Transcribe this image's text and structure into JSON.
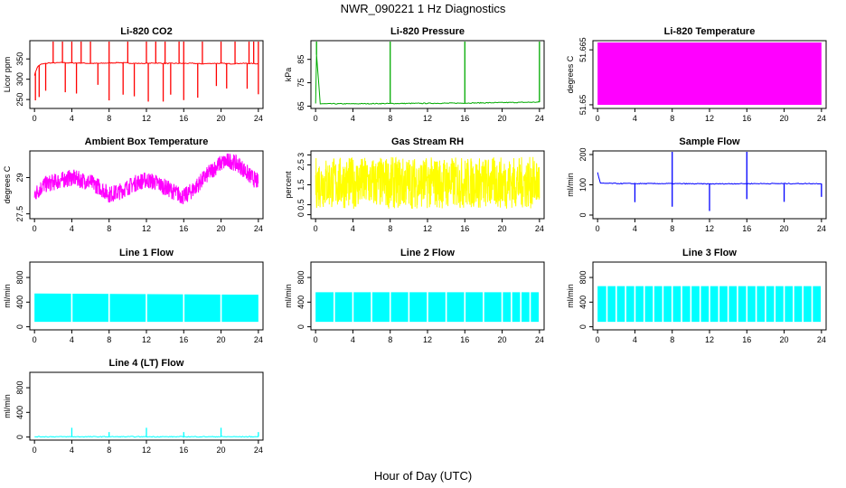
{
  "title": "NWR_090221  1 Hz Diagnostics",
  "xlabel": "Hour of Day (UTC)",
  "chart_data": [
    {
      "type": "line",
      "title": "Li-820 CO2",
      "ylabel": "Licor ppm",
      "xlim": [
        -0.5,
        24.5
      ],
      "ylim": [
        228,
        395
      ],
      "xticks": [
        0,
        4,
        8,
        12,
        16,
        20,
        24
      ],
      "yticks": [
        250,
        300,
        350
      ],
      "color": "#ff0000",
      "series": [
        {
          "x": [
            0,
            0.3,
            0.6,
            1,
            1.5,
            2,
            3,
            4,
            5,
            6,
            7,
            8,
            9,
            10,
            11,
            12,
            13,
            14,
            15,
            16,
            17,
            18,
            19,
            20,
            21,
            22,
            23,
            24
          ],
          "y": [
            310,
            330,
            336,
            338,
            340,
            340,
            341,
            340,
            340,
            339,
            339,
            340,
            341,
            340,
            339,
            339,
            340,
            339,
            339,
            339,
            339,
            338,
            339,
            339,
            338,
            339,
            339,
            338
          ],
          "spikes_up": [
            2,
            3,
            4,
            5,
            6,
            8,
            10,
            12,
            13,
            14,
            15.5,
            16,
            18,
            20,
            21.5,
            23,
            23.5,
            24
          ],
          "spikes_down": [
            0.1,
            0.5,
            1.2,
            3.3,
            4.5,
            6.8,
            8,
            9.5,
            10.7,
            12.2,
            13.8,
            14.6,
            16,
            17.5,
            19.5,
            20.6,
            22.8,
            24
          ]
        }
      ]
    },
    {
      "type": "line",
      "title": "Li-820 Pressure",
      "ylabel": "kPa",
      "xlim": [
        -0.5,
        24.5
      ],
      "ylim": [
        64,
        93
      ],
      "xticks": [
        0,
        4,
        8,
        12,
        16,
        20,
        24
      ],
      "yticks": [
        65,
        75,
        85
      ],
      "color": "#00aa00",
      "series": [
        {
          "x": [
            0,
            0.1,
            0.5,
            4,
            8,
            12,
            16,
            20,
            24
          ],
          "y": [
            66,
            87,
            66,
            66,
            66.1,
            66.2,
            66.3,
            66.5,
            66.7
          ],
          "spikes_up": [
            0.1,
            8,
            16,
            24
          ]
        }
      ]
    },
    {
      "type": "area",
      "title": "Li-820 Temperature",
      "ylabel": "degrees C",
      "xlim": [
        -0.5,
        24.5
      ],
      "ylim": [
        51.649,
        51.6675
      ],
      "xticks": [
        0,
        4,
        8,
        12,
        16,
        20,
        24
      ],
      "yticks": [
        51.65,
        51.665
      ],
      "color": "#ff00ff",
      "series": [
        {
          "x": [
            0,
            24
          ],
          "low": [
            51.65,
            51.65
          ],
          "high": [
            51.667,
            51.667
          ]
        }
      ]
    },
    {
      "type": "line",
      "title": "Ambient Box Temperature",
      "ylabel": "degrees C",
      "xlim": [
        -0.5,
        24.5
      ],
      "ylim": [
        27.3,
        30.1
      ],
      "xticks": [
        0,
        4,
        8,
        12,
        16,
        20,
        24
      ],
      "yticks": [
        27.5,
        29.0
      ],
      "color": "#ff00ff",
      "series": [
        {
          "x": [
            0,
            1,
            2,
            3,
            4,
            5,
            6,
            7,
            8,
            9,
            10,
            11,
            12,
            13,
            14,
            15,
            16,
            17,
            18,
            19,
            20,
            21,
            22,
            23,
            24
          ],
          "y": [
            28.3,
            28.7,
            28.8,
            28.9,
            29.0,
            28.9,
            28.8,
            28.6,
            28.3,
            28.4,
            28.6,
            28.8,
            28.9,
            28.8,
            28.6,
            28.4,
            28.2,
            28.5,
            28.9,
            29.3,
            29.6,
            29.7,
            29.5,
            29.1,
            28.8
          ],
          "noise": 0.35
        }
      ]
    },
    {
      "type": "line",
      "title": "Gas Stream RH",
      "ylabel": "percent",
      "xlim": [
        -0.5,
        24.5
      ],
      "ylim": [
        -0.2,
        3.2
      ],
      "xticks": [
        0,
        4,
        8,
        12,
        16,
        20,
        24
      ],
      "yticks": [
        0.0,
        0.5,
        1.5,
        2.5,
        3.0
      ],
      "color": "#ffff00",
      "series": [
        {
          "x": [
            0,
            4,
            8,
            12,
            16,
            20,
            24
          ],
          "y": [
            1.6,
            1.6,
            1.6,
            1.6,
            1.6,
            1.6,
            1.6
          ],
          "noise": 1.3
        }
      ]
    },
    {
      "type": "line",
      "title": "Sample Flow",
      "ylabel": "ml/min",
      "xlim": [
        -0.5,
        24.5
      ],
      "ylim": [
        -12,
        212
      ],
      "xticks": [
        0,
        4,
        8,
        12,
        16,
        20,
        24
      ],
      "yticks": [
        0,
        100,
        200
      ],
      "color": "#0000ff",
      "series": [
        {
          "x": [
            0,
            0.3,
            4,
            8,
            12,
            16,
            20,
            24
          ],
          "y": [
            140,
            105,
            104,
            104,
            103,
            104,
            104,
            104
          ],
          "spikes_up": [
            8,
            16
          ],
          "spikes_down": [
            4,
            8,
            12,
            16,
            20,
            24
          ]
        }
      ]
    },
    {
      "type": "area",
      "title": "Line 1 Flow",
      "ylabel": "ml/min",
      "xlim": [
        -0.5,
        24.5
      ],
      "ylim": [
        -50,
        1050
      ],
      "xticks": [
        0,
        4,
        8,
        12,
        16,
        20,
        24
      ],
      "yticks": [
        0,
        400,
        800
      ],
      "color": "#00ffff",
      "series": [
        {
          "x": [
            0,
            24
          ],
          "low": [
            80,
            80
          ],
          "high": [
            540,
            520
          ],
          "gaps": [
            4,
            8,
            12,
            16,
            20
          ]
        }
      ]
    },
    {
      "type": "area",
      "title": "Line 2 Flow",
      "ylabel": "ml/min",
      "xlim": [
        -0.5,
        24.5
      ],
      "ylim": [
        -50,
        1050
      ],
      "xticks": [
        0,
        4,
        8,
        12,
        16,
        20,
        24
      ],
      "yticks": [
        0,
        400,
        800
      ],
      "color": "#00ffff",
      "series": [
        {
          "x": [
            0,
            24
          ],
          "low": [
            80,
            80
          ],
          "high": [
            560,
            560
          ],
          "gaps": [
            2,
            4,
            6,
            8,
            10,
            12,
            14,
            16,
            18,
            20,
            21,
            22,
            23,
            24
          ]
        }
      ]
    },
    {
      "type": "area",
      "title": "Line 3 Flow",
      "ylabel": "ml/min",
      "xlim": [
        -0.5,
        24.5
      ],
      "ylim": [
        -50,
        1050
      ],
      "xticks": [
        0,
        4,
        8,
        12,
        16,
        20,
        24
      ],
      "yticks": [
        0,
        400,
        800
      ],
      "color": "#00ffff",
      "series": [
        {
          "x": [
            0,
            24
          ],
          "low": [
            80,
            80
          ],
          "high": [
            660,
            660
          ],
          "gaps": [
            1,
            2,
            3,
            4,
            5,
            6,
            7,
            8,
            9,
            10,
            11,
            12,
            13,
            14,
            15,
            16,
            17,
            18,
            19,
            20,
            21,
            22,
            23,
            24
          ]
        }
      ]
    },
    {
      "type": "line",
      "title": "Line 4 (LT) Flow",
      "ylabel": "ml/min",
      "xlim": [
        -0.5,
        24.5
      ],
      "ylim": [
        -50,
        1050
      ],
      "xticks": [
        0,
        4,
        8,
        12,
        16,
        20,
        24
      ],
      "yticks": [
        0,
        400,
        800
      ],
      "color": "#00ffff",
      "series": [
        {
          "x": [
            0,
            24
          ],
          "y": [
            5,
            5
          ],
          "spikes_up": [
            4,
            8,
            12,
            16,
            20,
            24
          ],
          "spike_values": [
            150,
            80,
            150,
            80,
            150,
            80
          ]
        }
      ]
    }
  ]
}
